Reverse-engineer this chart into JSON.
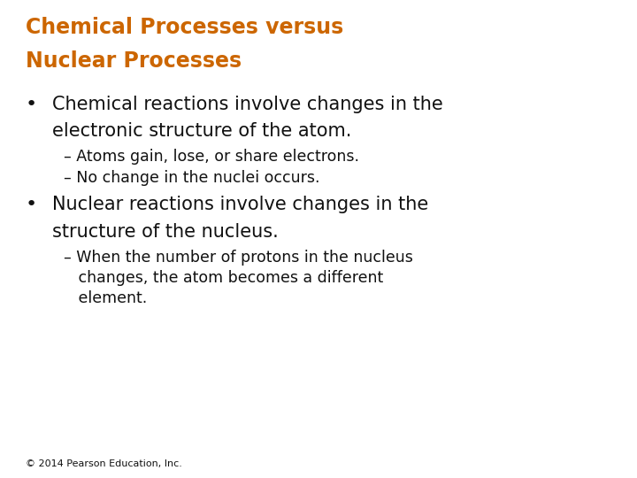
{
  "background_color": "#ffffff",
  "title_line1": "Chemical Processes versus",
  "title_line2": "Nuclear Processes",
  "title_color": "#cc6600",
  "title_fontsize": 17,
  "title_fontweight": "bold",
  "bullet1_text_line1": "Chemical reactions involve changes in the",
  "bullet1_text_line2": "electronic structure of the atom.",
  "bullet1_fontsize": 15,
  "bullet1_fontweight": "normal",
  "sub1_line1": "– Atoms gain, lose, or share electrons.",
  "sub1_line2": "– No change in the nuclei occurs.",
  "sub_fontsize": 12.5,
  "bullet2_text_line1": "Nuclear reactions involve changes in the",
  "bullet2_text_line2": "structure of the nucleus.",
  "bullet2_fontsize": 15,
  "bullet2_fontweight": "normal",
  "sub2_line1": "– When the number of protons in the nucleus",
  "sub2_line2": "   changes, the atom becomes a different",
  "sub2_line3": "   element.",
  "text_color": "#111111",
  "footer_text": "© 2014 Pearson Education, Inc.",
  "footer_fontsize": 8
}
